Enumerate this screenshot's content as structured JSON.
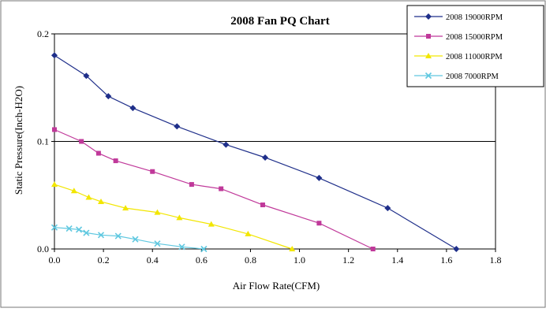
{
  "chart_data": {
    "type": "line",
    "title": "2008 Fan PQ Chart",
    "xlabel": "Air Flow Rate(CFM)",
    "ylabel": "Static Pressure(Inch-H2O)",
    "xlim": [
      0,
      1.8
    ],
    "ylim": [
      0,
      0.2
    ],
    "x_ticks": [
      "0.0",
      "0.2",
      "0.4",
      "0.6",
      "0.8",
      "1.0",
      "1.2",
      "1.4",
      "1.6",
      "1.8"
    ],
    "y_ticks": [
      "0.0",
      "0.1",
      "0.2"
    ],
    "grid": "horizontal line at 0.1",
    "legend_position": "top-right",
    "series": [
      {
        "name": "2008  19000RPM",
        "color": "#1f2f8a",
        "marker": "diamond",
        "points": [
          [
            0.0,
            0.18
          ],
          [
            0.13,
            0.161
          ],
          [
            0.22,
            0.142
          ],
          [
            0.32,
            0.131
          ],
          [
            0.5,
            0.114
          ],
          [
            0.7,
            0.097
          ],
          [
            0.86,
            0.085
          ],
          [
            1.08,
            0.066
          ],
          [
            1.36,
            0.038
          ],
          [
            1.64,
            0.0
          ]
        ]
      },
      {
        "name": "2008  15000RPM",
        "color": "#c0399a",
        "marker": "square",
        "points": [
          [
            0.0,
            0.111
          ],
          [
            0.11,
            0.1
          ],
          [
            0.18,
            0.089
          ],
          [
            0.25,
            0.082
          ],
          [
            0.4,
            0.072
          ],
          [
            0.56,
            0.06
          ],
          [
            0.68,
            0.056
          ],
          [
            0.85,
            0.041
          ],
          [
            1.08,
            0.024
          ],
          [
            1.3,
            0.0
          ]
        ]
      },
      {
        "name": "2008  11000RPM",
        "color": "#f2e600",
        "marker": "triangle",
        "points": [
          [
            0.0,
            0.06
          ],
          [
            0.08,
            0.054
          ],
          [
            0.14,
            0.048
          ],
          [
            0.19,
            0.044
          ],
          [
            0.29,
            0.038
          ],
          [
            0.42,
            0.034
          ],
          [
            0.51,
            0.029
          ],
          [
            0.64,
            0.023
          ],
          [
            0.79,
            0.014
          ],
          [
            0.97,
            0.0
          ]
        ]
      },
      {
        "name": "2008  7000RPM",
        "color": "#5fc8e0",
        "marker": "x",
        "points": [
          [
            0.0,
            0.02
          ],
          [
            0.06,
            0.019
          ],
          [
            0.1,
            0.018
          ],
          [
            0.13,
            0.015
          ],
          [
            0.19,
            0.013
          ],
          [
            0.26,
            0.012
          ],
          [
            0.33,
            0.009
          ],
          [
            0.42,
            0.005
          ],
          [
            0.52,
            0.002
          ],
          [
            0.61,
            0.0
          ]
        ]
      }
    ]
  }
}
